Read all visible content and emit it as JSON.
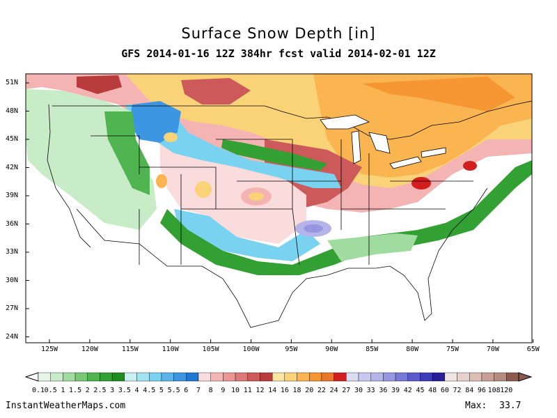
{
  "title": "Surface Snow Depth [in]",
  "subtitle": "GFS 2014-01-16 12Z 384hr fcst valid 2014-02-01 12Z",
  "lat_labels": [
    "51N",
    "48N",
    "45N",
    "42N",
    "39N",
    "36N",
    "33N",
    "30N",
    "27N",
    "24N"
  ],
  "lon_labels": [
    "125W",
    "120W",
    "115W",
    "110W",
    "105W",
    "100W",
    "95W",
    "90W",
    "85W",
    "80W",
    "75W",
    "70W",
    "65W"
  ],
  "colorbar": {
    "levels": [
      "0.1",
      "0.5",
      "1",
      "1.5",
      "2",
      "2.5",
      "3",
      "3.5",
      "4",
      "4.5",
      "5",
      "5.5",
      "6",
      "7",
      "8",
      "9",
      "10",
      "11",
      "12",
      "14",
      "16",
      "18",
      "20",
      "22",
      "24",
      "27",
      "30",
      "33",
      "36",
      "39",
      "42",
      "45",
      "48",
      "60",
      "72",
      "84",
      "96",
      "108",
      "120"
    ],
    "colors": [
      "#e6f5e6",
      "#c8ebc8",
      "#a0dca0",
      "#78c878",
      "#50b450",
      "#32a032",
      "#1e8c1e",
      "#c8f0f0",
      "#a0e6f0",
      "#78d2f0",
      "#5ab4eb",
      "#3c96e1",
      "#1e78d2",
      "#fadcdc",
      "#f5b4b4",
      "#eb9696",
      "#dc7878",
      "#cd5a5a",
      "#b93c3c",
      "#fae6a0",
      "#fad278",
      "#fab450",
      "#f59632",
      "#eb7828",
      "#d21e1e",
      "#dcdcf5",
      "#c8c8f0",
      "#b4b4eb",
      "#9696e1",
      "#7878d7",
      "#5a5acd",
      "#3c3cb9",
      "#281e9b",
      "#f0e6e1",
      "#e6d2cd",
      "#dcbeb4",
      "#c8a096",
      "#b48c82",
      "#8c5a50"
    ]
  },
  "map": {
    "lat_range": [
      23,
      52
    ],
    "lon_range": [
      -128,
      -65
    ],
    "projection": "lat-lon"
  },
  "footer": {
    "site": "InstantWeatherMaps.com",
    "max_label": "Max:",
    "max_value": "33.7"
  }
}
